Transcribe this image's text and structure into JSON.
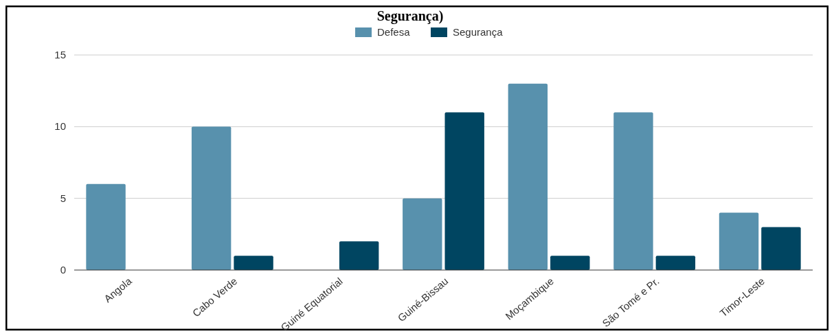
{
  "chart_data": {
    "type": "bar",
    "title": "Segurança)",
    "categories": [
      "Angola",
      "Cabo Verde",
      "Guiné Equatorial",
      "Guiné-Bissau",
      "Moçambique",
      "São Tomé e Pr.",
      "Timor-Leste"
    ],
    "series": [
      {
        "name": "Defesa",
        "color": "#5891ad",
        "values": [
          6,
          10,
          0,
          5,
          13,
          11,
          4
        ]
      },
      {
        "name": "Segurança",
        "color": "#004561",
        "values": [
          0,
          1,
          2,
          11,
          1,
          1,
          3
        ]
      }
    ],
    "ylim": [
      0,
      15
    ],
    "yticks": [
      0,
      5,
      10,
      15
    ],
    "grid": "y",
    "legend": "top"
  }
}
